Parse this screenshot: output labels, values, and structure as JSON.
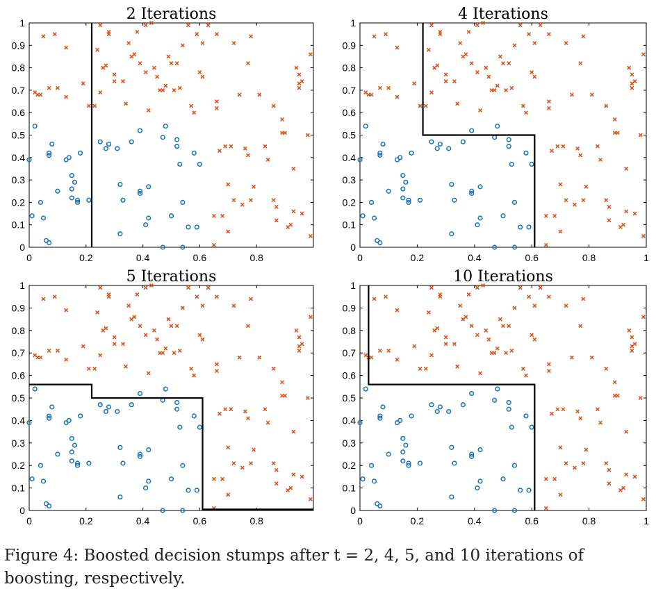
{
  "colors": {
    "positive": "#d9541a",
    "negative": "#1f77b4",
    "boundary": "#000000"
  },
  "caption": {
    "label": "Figure 4:",
    "text": "Boosted decision stumps after t = 2, 4, 5, and 10 iterations of boosting, respectively."
  },
  "chart_data": [
    {
      "type": "scatter",
      "title": "2 Iterations",
      "xlim": [
        0,
        1
      ],
      "ylim": [
        0,
        1
      ],
      "xticks": [
        0,
        0.2,
        0.4,
        0.6,
        0.8
      ],
      "xtick_labels": [
        "0",
        "0.2",
        "0.4",
        "0.6",
        "0.8"
      ],
      "yticks": [
        0,
        0.1,
        0.2,
        0.3,
        0.4,
        0.5,
        0.6,
        0.7,
        0.8,
        0.9,
        1
      ],
      "ytick_labels": [
        "0",
        "0.1",
        "0.2",
        "0.3",
        "0.4",
        "0.5",
        "0.6",
        "0.7",
        "0.8",
        "0.9",
        "1"
      ],
      "boundary": [
        [
          0.22,
          0
        ],
        [
          0.22,
          1
        ]
      ]
    },
    {
      "type": "scatter",
      "title": "4 Iterations",
      "xlim": [
        0,
        1
      ],
      "ylim": [
        0,
        1
      ],
      "xticks": [
        0,
        0.2,
        0.4,
        0.6,
        0.8,
        1
      ],
      "xtick_labels": [
        "0",
        "0.2",
        "0.4",
        "0.6",
        "0.8",
        "1"
      ],
      "yticks": [
        0,
        0.1,
        0.2,
        0.3,
        0.4,
        0.5,
        0.6,
        0.7,
        0.8,
        0.9,
        1
      ],
      "ytick_labels": [
        "0",
        "0.1",
        "0.2",
        "0.3",
        "0.4",
        "0.5",
        "0.6",
        "0.7",
        "0.8",
        "0.9",
        "1"
      ],
      "boundary": [
        [
          0.22,
          1
        ],
        [
          0.22,
          0.5
        ],
        [
          0.61,
          0.5
        ],
        [
          0.61,
          0
        ]
      ]
    },
    {
      "type": "scatter",
      "title": "5 Iterations",
      "xlim": [
        0,
        1
      ],
      "ylim": [
        0,
        1
      ],
      "xticks": [
        0,
        0.2,
        0.4,
        0.6,
        0.8
      ],
      "xtick_labels": [
        "0",
        "0.2",
        "0.4",
        "0.6",
        "0.8"
      ],
      "yticks": [
        0,
        0.1,
        0.2,
        0.3,
        0.4,
        0.5,
        0.6,
        0.7,
        0.8,
        0.9,
        1
      ],
      "ytick_labels": [
        "0",
        "0.1",
        "0.2",
        "0.3",
        "0.4",
        "0.5",
        "0.6",
        "0.7",
        "0.8",
        "0.9",
        "1"
      ],
      "boundary": [
        [
          0,
          0.56
        ],
        [
          0.22,
          0.56
        ],
        [
          0.22,
          0.5
        ],
        [
          0.61,
          0.5
        ],
        [
          0.61,
          0.005
        ],
        [
          1,
          0.005
        ]
      ]
    },
    {
      "type": "scatter",
      "title": "10 Iterations",
      "xlim": [
        0,
        1
      ],
      "ylim": [
        0,
        1
      ],
      "xticks": [
        0,
        0.2,
        0.4,
        0.6,
        0.8,
        1
      ],
      "xtick_labels": [
        "0",
        "0.2",
        "0.4",
        "0.6",
        "0.8",
        "1"
      ],
      "yticks": [
        0,
        0.1,
        0.2,
        0.3,
        0.4,
        0.5,
        0.6,
        0.7,
        0.8,
        0.9,
        1
      ],
      "ytick_labels": [
        "0",
        "0.1",
        "0.2",
        "0.3",
        "0.4",
        "0.5",
        "0.6",
        "0.7",
        "0.8",
        "0.9",
        "1"
      ],
      "boundary": [
        [
          0.03,
          1
        ],
        [
          0.03,
          0.56
        ],
        [
          0.61,
          0.56
        ],
        [
          0.61,
          0
        ]
      ]
    }
  ],
  "points": {
    "negative": [
      [
        0.0,
        0.39
      ],
      [
        0.02,
        0.54
      ],
      [
        0.01,
        0.14
      ],
      [
        0.04,
        0.2
      ],
      [
        0.05,
        0.13
      ],
      [
        0.06,
        0.03
      ],
      [
        0.07,
        0.02
      ],
      [
        0.07,
        0.41
      ],
      [
        0.07,
        0.42
      ],
      [
        0.08,
        0.46
      ],
      [
        0.1,
        0.25
      ],
      [
        0.13,
        0.39
      ],
      [
        0.14,
        0.4
      ],
      [
        0.15,
        0.26
      ],
      [
        0.15,
        0.22
      ],
      [
        0.15,
        0.32
      ],
      [
        0.16,
        0.29
      ],
      [
        0.17,
        0.2
      ],
      [
        0.17,
        0.21
      ],
      [
        0.18,
        0.42
      ],
      [
        0.21,
        0.21
      ],
      [
        0.25,
        0.47
      ],
      [
        0.27,
        0.44
      ],
      [
        0.28,
        0.46
      ],
      [
        0.31,
        0.44
      ],
      [
        0.32,
        0.28
      ],
      [
        0.32,
        0.06
      ],
      [
        0.33,
        0.21
      ],
      [
        0.36,
        0.47
      ],
      [
        0.39,
        0.52
      ],
      [
        0.39,
        0.24
      ],
      [
        0.39,
        0.25
      ],
      [
        0.41,
        0.1
      ],
      [
        0.42,
        0.13
      ],
      [
        0.42,
        0.27
      ],
      [
        0.47,
        0.49
      ],
      [
        0.47,
        0.0
      ],
      [
        0.48,
        0.54
      ],
      [
        0.5,
        0.14
      ],
      [
        0.52,
        0.48
      ],
      [
        0.52,
        0.45
      ],
      [
        0.53,
        0.37
      ],
      [
        0.54,
        0.0
      ],
      [
        0.54,
        0.2
      ],
      [
        0.56,
        0.09
      ],
      [
        0.58,
        0.42
      ],
      [
        0.59,
        0.09
      ],
      [
        0.6,
        0.37
      ]
    ],
    "positive": [
      [
        0.02,
        0.69
      ],
      [
        0.03,
        0.68
      ],
      [
        0.04,
        0.68
      ],
      [
        0.05,
        0.94
      ],
      [
        0.07,
        0.71
      ],
      [
        0.09,
        0.95
      ],
      [
        0.1,
        0.71
      ],
      [
        0.13,
        0.89
      ],
      [
        0.13,
        0.67
      ],
      [
        0.19,
        0.73
      ],
      [
        0.21,
        0.63
      ],
      [
        0.23,
        0.63
      ],
      [
        0.24,
        0.88
      ],
      [
        0.25,
        0.99
      ],
      [
        0.25,
        0.69
      ],
      [
        0.26,
        0.8
      ],
      [
        0.27,
        0.81
      ],
      [
        0.28,
        0.95
      ],
      [
        0.28,
        0.96
      ],
      [
        0.3,
        0.77
      ],
      [
        0.3,
        0.74
      ],
      [
        0.33,
        0.74
      ],
      [
        0.34,
        0.64
      ],
      [
        0.36,
        0.85
      ],
      [
        0.37,
        0.86
      ],
      [
        0.38,
        0.96
      ],
      [
        0.39,
        0.82
      ],
      [
        0.41,
        0.99
      ],
      [
        0.41,
        0.78
      ],
      [
        0.42,
        0.61
      ],
      [
        0.43,
        1.0
      ],
      [
        0.44,
        0.8
      ],
      [
        0.45,
        0.76
      ],
      [
        0.46,
        0.7
      ],
      [
        0.47,
        0.7
      ],
      [
        0.48,
        0.72
      ],
      [
        0.49,
        0.85
      ],
      [
        0.5,
        0.82
      ],
      [
        0.51,
        0.7
      ],
      [
        0.52,
        0.82
      ],
      [
        0.53,
        0.71
      ],
      [
        0.54,
        0.9
      ],
      [
        0.56,
        0.99
      ],
      [
        0.57,
        0.63
      ],
      [
        0.58,
        0.6
      ],
      [
        0.59,
        0.95
      ],
      [
        0.6,
        0.78
      ],
      [
        0.61,
        0.76
      ],
      [
        0.63,
        0.99
      ],
      [
        0.65,
        0.14
      ],
      [
        0.65,
        0.01
      ],
      [
        0.66,
        0.65
      ],
      [
        0.66,
        0.62
      ],
      [
        0.66,
        0.95
      ],
      [
        0.67,
        0.43
      ],
      [
        0.68,
        0.14
      ],
      [
        0.69,
        0.45
      ],
      [
        0.7,
        0.28
      ],
      [
        0.7,
        0.07
      ],
      [
        0.71,
        0.45
      ],
      [
        0.72,
        0.91
      ],
      [
        0.72,
        0.21
      ],
      [
        0.74,
        0.68
      ],
      [
        0.75,
        0.19
      ],
      [
        0.76,
        0.44
      ],
      [
        0.77,
        0.82
      ],
      [
        0.77,
        0.41
      ],
      [
        0.78,
        0.94
      ],
      [
        0.78,
        0.21
      ],
      [
        0.79,
        0.27
      ],
      [
        0.81,
        0.68
      ],
      [
        0.83,
        0.45
      ],
      [
        0.84,
        0.39
      ],
      [
        0.86,
        0.63
      ],
      [
        0.86,
        0.21
      ],
      [
        0.87,
        0.18
      ],
      [
        0.87,
        0.12
      ],
      [
        0.89,
        0.57
      ],
      [
        0.89,
        0.51
      ],
      [
        0.9,
        0.51
      ],
      [
        0.91,
        0.09
      ],
      [
        0.92,
        0.1
      ],
      [
        0.93,
        0.35
      ],
      [
        0.93,
        0.16
      ],
      [
        0.94,
        0.8
      ],
      [
        0.95,
        0.77
      ],
      [
        0.95,
        0.73
      ],
      [
        0.95,
        0.71
      ],
      [
        0.96,
        0.74
      ],
      [
        0.96,
        0.15
      ],
      [
        0.98,
        0.5
      ],
      [
        0.99,
        0.86
      ],
      [
        0.99,
        0.05
      ],
      [
        0.61,
        0.91
      ],
      [
        0.35,
        0.91
      ]
    ]
  }
}
